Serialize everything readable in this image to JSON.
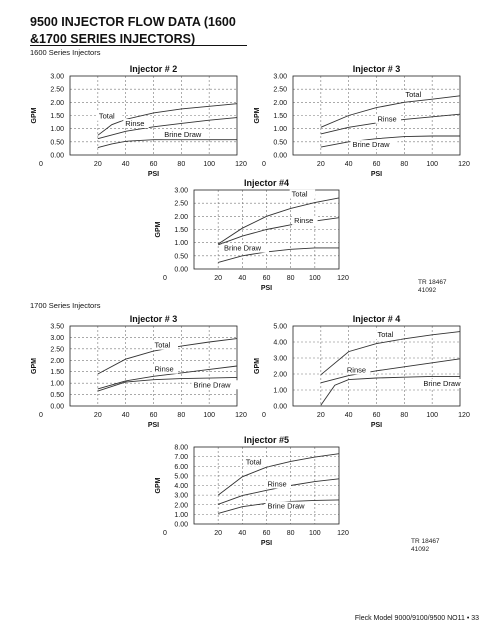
{
  "doc": {
    "title_line1": "9500 INJECTOR FLOW DATA (1600",
    "title_line2": "&1700 SERIES INJECTORS)",
    "section_1600": "1600 Series Injectors",
    "section_1700": "1700 Series Injectors",
    "tr_top": [
      "TR 18467",
      "41092"
    ],
    "tr_bottom": [
      "TR 18467",
      "41092"
    ],
    "footer": "Fleck Model 9000/9100/9500 NO11 • 33"
  },
  "chart_data": [
    {
      "type": "line",
      "title": "Injector # 2",
      "xlabel": "PSI",
      "ylabel": "GPM",
      "xlim": [
        0,
        120
      ],
      "ylim": [
        0,
        3
      ],
      "x_ticks": [
        0,
        20,
        40,
        60,
        80,
        100,
        120
      ],
      "y_ticks": [
        "0.00",
        "0.50",
        "1.00",
        "1.50",
        "2.00",
        "2.50",
        "3.00"
      ],
      "grid": true,
      "series": [
        {
          "name": "Total",
          "label_at": [
            20,
            1.38
          ],
          "points": [
            [
              20,
              0.75
            ],
            [
              30,
              1.15
            ],
            [
              40,
              1.35
            ],
            [
              60,
              1.6
            ],
            [
              80,
              1.75
            ],
            [
              100,
              1.85
            ],
            [
              120,
              1.95
            ]
          ]
        },
        {
          "name": "Rinse",
          "label_at": [
            39,
            1.1
          ],
          "points": [
            [
              20,
              0.62
            ],
            [
              40,
              0.9
            ],
            [
              60,
              1.07
            ],
            [
              80,
              1.2
            ],
            [
              100,
              1.32
            ],
            [
              120,
              1.42
            ]
          ]
        },
        {
          "name": "Brine Draw",
          "label_at": [
            67,
            0.68
          ],
          "points": [
            [
              20,
              0.28
            ],
            [
              30,
              0.42
            ],
            [
              40,
              0.52
            ],
            [
              60,
              0.58
            ],
            [
              80,
              0.58
            ],
            [
              100,
              0.58
            ],
            [
              120,
              0.58
            ]
          ]
        }
      ]
    },
    {
      "type": "line",
      "title": "Injector # 3",
      "xlabel": "PSI",
      "ylabel": "GPM",
      "xlim": [
        0,
        120
      ],
      "ylim": [
        0,
        3
      ],
      "x_ticks": [
        0,
        20,
        40,
        60,
        80,
        100,
        120
      ],
      "y_ticks": [
        "0.00",
        "0.50",
        "1.00",
        "1.50",
        "2.00",
        "2.50",
        "3.00"
      ],
      "grid": true,
      "series": [
        {
          "name": "Total",
          "label_at": [
            80,
            2.2
          ],
          "points": [
            [
              20,
              1.05
            ],
            [
              40,
              1.5
            ],
            [
              60,
              1.8
            ],
            [
              80,
              2.0
            ],
            [
              100,
              2.12
            ],
            [
              120,
              2.25
            ]
          ]
        },
        {
          "name": "Rinse",
          "label_at": [
            60,
            1.28
          ],
          "points": [
            [
              20,
              0.8
            ],
            [
              40,
              1.05
            ],
            [
              60,
              1.22
            ],
            [
              80,
              1.35
            ],
            [
              100,
              1.45
            ],
            [
              120,
              1.55
            ]
          ]
        },
        {
          "name": "Brine Draw",
          "label_at": [
            42,
            0.3
          ],
          "points": [
            [
              20,
              0.3
            ],
            [
              40,
              0.5
            ],
            [
              60,
              0.62
            ],
            [
              80,
              0.7
            ],
            [
              100,
              0.72
            ],
            [
              120,
              0.72
            ]
          ]
        }
      ]
    },
    {
      "type": "line",
      "title": "Injector #4",
      "xlabel": "PSI",
      "ylabel": "GPM",
      "xlim": [
        0,
        120
      ],
      "ylim": [
        0,
        3
      ],
      "x_ticks": [
        0,
        20,
        40,
        60,
        80,
        100,
        120
      ],
      "y_ticks": [
        "0.00",
        "0.50",
        "1.00",
        "1.50",
        "2.00",
        "2.50",
        "3.00"
      ],
      "grid": true,
      "series": [
        {
          "name": "Total",
          "label_at": [
            80,
            2.75
          ],
          "points": [
            [
              20,
              0.95
            ],
            [
              40,
              1.55
            ],
            [
              60,
              2.0
            ],
            [
              80,
              2.3
            ],
            [
              100,
              2.52
            ],
            [
              120,
              2.7
            ]
          ]
        },
        {
          "name": "Rinse",
          "label_at": [
            82,
            1.75
          ],
          "points": [
            [
              20,
              0.92
            ],
            [
              40,
              1.25
            ],
            [
              60,
              1.5
            ],
            [
              80,
              1.68
            ],
            [
              100,
              1.82
            ],
            [
              120,
              1.95
            ]
          ]
        },
        {
          "name": "Brine Draw",
          "label_at": [
            24,
            0.7
          ],
          "points": [
            [
              20,
              0.25
            ],
            [
              40,
              0.5
            ],
            [
              60,
              0.65
            ],
            [
              80,
              0.75
            ],
            [
              100,
              0.8
            ],
            [
              120,
              0.8
            ]
          ]
        }
      ]
    },
    {
      "type": "line",
      "title": "Injector # 3",
      "xlabel": "PSI",
      "ylabel": "GPM",
      "xlim": [
        0,
        120
      ],
      "ylim": [
        0,
        3.5
      ],
      "x_ticks": [
        0,
        20,
        40,
        60,
        80,
        100,
        120
      ],
      "y_ticks": [
        "0.00",
        "0.50",
        "1.00",
        "1.50",
        "2.00",
        "2.50",
        "3.00",
        "3.50"
      ],
      "grid": true,
      "series": [
        {
          "name": "Total",
          "label_at": [
            60,
            2.55
          ],
          "points": [
            [
              20,
              1.4
            ],
            [
              40,
              2.05
            ],
            [
              60,
              2.4
            ],
            [
              80,
              2.62
            ],
            [
              100,
              2.8
            ],
            [
              120,
              2.95
            ]
          ]
        },
        {
          "name": "Rinse",
          "label_at": [
            60,
            1.5
          ],
          "points": [
            [
              20,
              0.75
            ],
            [
              40,
              1.1
            ],
            [
              60,
              1.3
            ],
            [
              80,
              1.45
            ],
            [
              100,
              1.6
            ],
            [
              120,
              1.75
            ]
          ]
        },
        {
          "name": "Brine Draw",
          "label_at": [
            88,
            0.82
          ],
          "points": [
            [
              20,
              0.65
            ],
            [
              40,
              1.05
            ],
            [
              60,
              1.15
            ],
            [
              80,
              1.2
            ],
            [
              100,
              1.22
            ],
            [
              120,
              1.25
            ]
          ]
        }
      ]
    },
    {
      "type": "line",
      "title": "Injector # 4",
      "xlabel": "PSI",
      "ylabel": "GPM",
      "xlim": [
        0,
        120
      ],
      "ylim": [
        0,
        5
      ],
      "x_ticks": [
        0,
        20,
        40,
        60,
        80,
        100,
        120
      ],
      "y_ticks": [
        "0.00",
        "1.00",
        "2.00",
        "3.00",
        "4.00",
        "5.00"
      ],
      "grid": true,
      "series": [
        {
          "name": "Total",
          "label_at": [
            60,
            4.3
          ],
          "points": [
            [
              20,
              1.95
            ],
            [
              40,
              3.4
            ],
            [
              60,
              3.9
            ],
            [
              80,
              4.2
            ],
            [
              100,
              4.45
            ],
            [
              120,
              4.65
            ]
          ]
        },
        {
          "name": "Rinse",
          "label_at": [
            38,
            2.1
          ],
          "points": [
            [
              20,
              1.45
            ],
            [
              40,
              1.9
            ],
            [
              60,
              2.2
            ],
            [
              80,
              2.45
            ],
            [
              100,
              2.7
            ],
            [
              120,
              2.95
            ]
          ]
        },
        {
          "name": "Brine Draw",
          "label_at": [
            93,
            1.25
          ],
          "points": [
            [
              20,
              0.05
            ],
            [
              30,
              1.3
            ],
            [
              40,
              1.65
            ],
            [
              60,
              1.75
            ],
            [
              80,
              1.8
            ],
            [
              100,
              1.85
            ],
            [
              120,
              1.85
            ]
          ]
        }
      ]
    },
    {
      "type": "line",
      "title": "Injector #5",
      "xlabel": "PSI",
      "ylabel": "GPM",
      "xlim": [
        0,
        120
      ],
      "ylim": [
        0,
        8
      ],
      "x_ticks": [
        0,
        20,
        40,
        60,
        80,
        100,
        120
      ],
      "y_ticks": [
        "0.00",
        "1.00",
        "2.00",
        "3.00",
        "4.00",
        "5.00",
        "6.00",
        "7.00",
        "8.00"
      ],
      "grid": true,
      "series": [
        {
          "name": "Total",
          "label_at": [
            42,
            6.2
          ],
          "points": [
            [
              20,
              3.0
            ],
            [
              40,
              4.9
            ],
            [
              60,
              5.9
            ],
            [
              80,
              6.5
            ],
            [
              100,
              6.95
            ],
            [
              120,
              7.3
            ]
          ]
        },
        {
          "name": "Rinse",
          "label_at": [
            60,
            3.9
          ],
          "points": [
            [
              20,
              2.05
            ],
            [
              40,
              2.95
            ],
            [
              60,
              3.5
            ],
            [
              80,
              4.0
            ],
            [
              100,
              4.4
            ],
            [
              120,
              4.7
            ]
          ]
        },
        {
          "name": "Brine Draw",
          "label_at": [
            60,
            1.6
          ],
          "points": [
            [
              20,
              1.1
            ],
            [
              40,
              1.8
            ],
            [
              60,
              2.15
            ],
            [
              80,
              2.35
            ],
            [
              100,
              2.45
            ],
            [
              120,
              2.5
            ]
          ]
        }
      ]
    }
  ]
}
